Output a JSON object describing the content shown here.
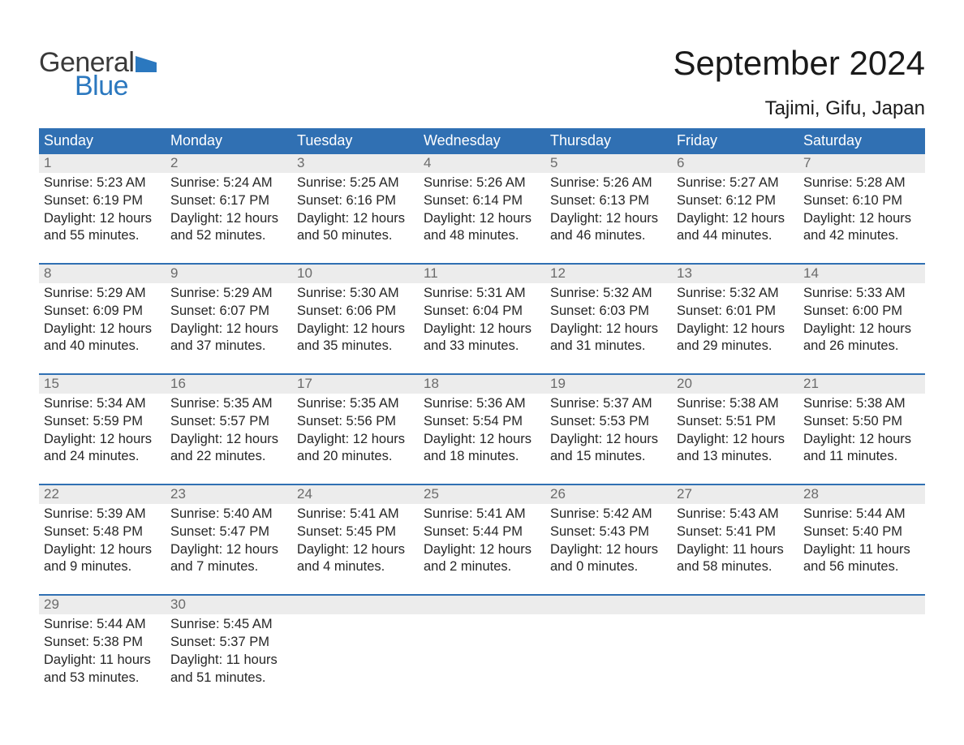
{
  "logo": {
    "text1": "General",
    "text2": "Blue",
    "flag_color": "#2b78bf",
    "text1_color": "#3a3a3a"
  },
  "title": "September 2024",
  "location": "Tajimi, Gifu, Japan",
  "colors": {
    "header_bg": "#3070b3",
    "header_text": "#ffffff",
    "daynum_bg": "#ececec",
    "daynum_text": "#6b6b6b",
    "body_text": "#262626",
    "divider": "#3070b3",
    "page_bg": "#ffffff"
  },
  "typography": {
    "title_fontsize": 42,
    "location_fontsize": 24,
    "weekday_fontsize": 18,
    "daynum_fontsize": 17,
    "body_fontsize": 16.5,
    "logo_fontsize": 34
  },
  "weekdays": [
    "Sunday",
    "Monday",
    "Tuesday",
    "Wednesday",
    "Thursday",
    "Friday",
    "Saturday"
  ],
  "weeks": [
    [
      {
        "n": "1",
        "sunrise": "5:23 AM",
        "sunset": "6:19 PM",
        "dl1": "12 hours",
        "dl2": "and 55 minutes."
      },
      {
        "n": "2",
        "sunrise": "5:24 AM",
        "sunset": "6:17 PM",
        "dl1": "12 hours",
        "dl2": "and 52 minutes."
      },
      {
        "n": "3",
        "sunrise": "5:25 AM",
        "sunset": "6:16 PM",
        "dl1": "12 hours",
        "dl2": "and 50 minutes."
      },
      {
        "n": "4",
        "sunrise": "5:26 AM",
        "sunset": "6:14 PM",
        "dl1": "12 hours",
        "dl2": "and 48 minutes."
      },
      {
        "n": "5",
        "sunrise": "5:26 AM",
        "sunset": "6:13 PM",
        "dl1": "12 hours",
        "dl2": "and 46 minutes."
      },
      {
        "n": "6",
        "sunrise": "5:27 AM",
        "sunset": "6:12 PM",
        "dl1": "12 hours",
        "dl2": "and 44 minutes."
      },
      {
        "n": "7",
        "sunrise": "5:28 AM",
        "sunset": "6:10 PM",
        "dl1": "12 hours",
        "dl2": "and 42 minutes."
      }
    ],
    [
      {
        "n": "8",
        "sunrise": "5:29 AM",
        "sunset": "6:09 PM",
        "dl1": "12 hours",
        "dl2": "and 40 minutes."
      },
      {
        "n": "9",
        "sunrise": "5:29 AM",
        "sunset": "6:07 PM",
        "dl1": "12 hours",
        "dl2": "and 37 minutes."
      },
      {
        "n": "10",
        "sunrise": "5:30 AM",
        "sunset": "6:06 PM",
        "dl1": "12 hours",
        "dl2": "and 35 minutes."
      },
      {
        "n": "11",
        "sunrise": "5:31 AM",
        "sunset": "6:04 PM",
        "dl1": "12 hours",
        "dl2": "and 33 minutes."
      },
      {
        "n": "12",
        "sunrise": "5:32 AM",
        "sunset": "6:03 PM",
        "dl1": "12 hours",
        "dl2": "and 31 minutes."
      },
      {
        "n": "13",
        "sunrise": "5:32 AM",
        "sunset": "6:01 PM",
        "dl1": "12 hours",
        "dl2": "and 29 minutes."
      },
      {
        "n": "14",
        "sunrise": "5:33 AM",
        "sunset": "6:00 PM",
        "dl1": "12 hours",
        "dl2": "and 26 minutes."
      }
    ],
    [
      {
        "n": "15",
        "sunrise": "5:34 AM",
        "sunset": "5:59 PM",
        "dl1": "12 hours",
        "dl2": "and 24 minutes."
      },
      {
        "n": "16",
        "sunrise": "5:35 AM",
        "sunset": "5:57 PM",
        "dl1": "12 hours",
        "dl2": "and 22 minutes."
      },
      {
        "n": "17",
        "sunrise": "5:35 AM",
        "sunset": "5:56 PM",
        "dl1": "12 hours",
        "dl2": "and 20 minutes."
      },
      {
        "n": "18",
        "sunrise": "5:36 AM",
        "sunset": "5:54 PM",
        "dl1": "12 hours",
        "dl2": "and 18 minutes."
      },
      {
        "n": "19",
        "sunrise": "5:37 AM",
        "sunset": "5:53 PM",
        "dl1": "12 hours",
        "dl2": "and 15 minutes."
      },
      {
        "n": "20",
        "sunrise": "5:38 AM",
        "sunset": "5:51 PM",
        "dl1": "12 hours",
        "dl2": "and 13 minutes."
      },
      {
        "n": "21",
        "sunrise": "5:38 AM",
        "sunset": "5:50 PM",
        "dl1": "12 hours",
        "dl2": "and 11 minutes."
      }
    ],
    [
      {
        "n": "22",
        "sunrise": "5:39 AM",
        "sunset": "5:48 PM",
        "dl1": "12 hours",
        "dl2": "and 9 minutes."
      },
      {
        "n": "23",
        "sunrise": "5:40 AM",
        "sunset": "5:47 PM",
        "dl1": "12 hours",
        "dl2": "and 7 minutes."
      },
      {
        "n": "24",
        "sunrise": "5:41 AM",
        "sunset": "5:45 PM",
        "dl1": "12 hours",
        "dl2": "and 4 minutes."
      },
      {
        "n": "25",
        "sunrise": "5:41 AM",
        "sunset": "5:44 PM",
        "dl1": "12 hours",
        "dl2": "and 2 minutes."
      },
      {
        "n": "26",
        "sunrise": "5:42 AM",
        "sunset": "5:43 PM",
        "dl1": "12 hours",
        "dl2": "and 0 minutes."
      },
      {
        "n": "27",
        "sunrise": "5:43 AM",
        "sunset": "5:41 PM",
        "dl1": "11 hours",
        "dl2": "and 58 minutes."
      },
      {
        "n": "28",
        "sunrise": "5:44 AM",
        "sunset": "5:40 PM",
        "dl1": "11 hours",
        "dl2": "and 56 minutes."
      }
    ],
    [
      {
        "n": "29",
        "sunrise": "5:44 AM",
        "sunset": "5:38 PM",
        "dl1": "11 hours",
        "dl2": "and 53 minutes."
      },
      {
        "n": "30",
        "sunrise": "5:45 AM",
        "sunset": "5:37 PM",
        "dl1": "11 hours",
        "dl2": "and 51 minutes."
      },
      null,
      null,
      null,
      null,
      null
    ]
  ],
  "labels": {
    "sunrise": "Sunrise: ",
    "sunset": "Sunset: ",
    "daylight": "Daylight: "
  }
}
